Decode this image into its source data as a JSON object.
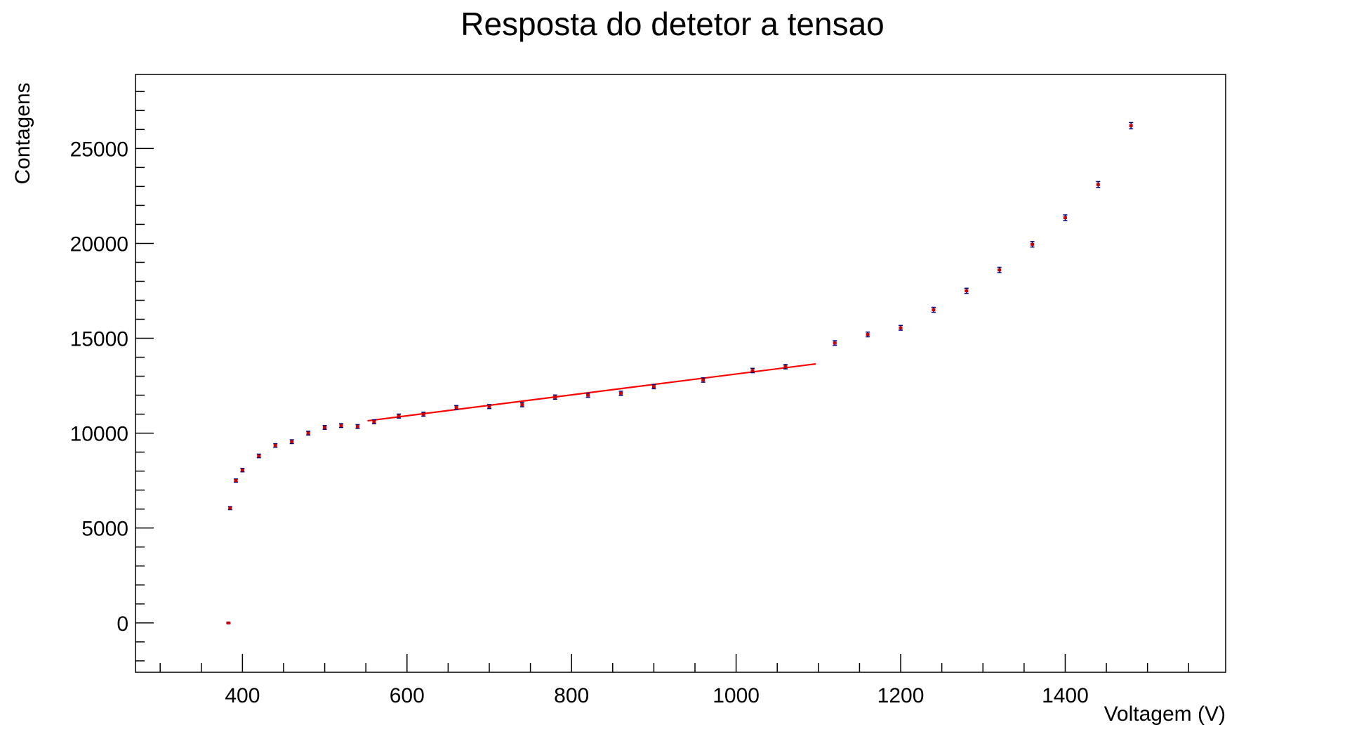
{
  "chart_data": {
    "type": "scatter",
    "title": "Resposta do detetor a tensao",
    "xlabel": "Voltagem (V)",
    "ylabel": "Contagens",
    "xlim": [
      270,
      1595
    ],
    "ylim": [
      -2600,
      28900
    ],
    "x_ticks": [
      400,
      600,
      800,
      1000,
      1200,
      1400
    ],
    "y_ticks": [
      0,
      5000,
      10000,
      15000,
      20000,
      25000
    ],
    "grid": false,
    "colors": {
      "marker": "#cc0000",
      "error_bar": "#000080",
      "fit_line": "#ff0000",
      "axis": "#000000"
    },
    "points": [
      {
        "x": 383,
        "y": 0,
        "err": 30
      },
      {
        "x": 385,
        "y": 6050,
        "err": 80
      },
      {
        "x": 392,
        "y": 7500,
        "err": 85
      },
      {
        "x": 400,
        "y": 8050,
        "err": 90
      },
      {
        "x": 420,
        "y": 8800,
        "err": 95
      },
      {
        "x": 440,
        "y": 9350,
        "err": 95
      },
      {
        "x": 460,
        "y": 9550,
        "err": 100
      },
      {
        "x": 480,
        "y": 10000,
        "err": 100
      },
      {
        "x": 500,
        "y": 10300,
        "err": 100
      },
      {
        "x": 520,
        "y": 10400,
        "err": 100
      },
      {
        "x": 540,
        "y": 10350,
        "err": 100
      },
      {
        "x": 560,
        "y": 10600,
        "err": 105
      },
      {
        "x": 590,
        "y": 10900,
        "err": 105
      },
      {
        "x": 620,
        "y": 11000,
        "err": 105
      },
      {
        "x": 660,
        "y": 11350,
        "err": 105
      },
      {
        "x": 700,
        "y": 11400,
        "err": 105
      },
      {
        "x": 740,
        "y": 11500,
        "err": 110
      },
      {
        "x": 780,
        "y": 11900,
        "err": 110
      },
      {
        "x": 820,
        "y": 12000,
        "err": 110
      },
      {
        "x": 860,
        "y": 12100,
        "err": 110
      },
      {
        "x": 900,
        "y": 12450,
        "err": 110
      },
      {
        "x": 960,
        "y": 12800,
        "err": 115
      },
      {
        "x": 1020,
        "y": 13300,
        "err": 115
      },
      {
        "x": 1060,
        "y": 13500,
        "err": 115
      },
      {
        "x": 1120,
        "y": 14750,
        "err": 120
      },
      {
        "x": 1160,
        "y": 15200,
        "err": 125
      },
      {
        "x": 1200,
        "y": 15550,
        "err": 125
      },
      {
        "x": 1240,
        "y": 16500,
        "err": 130
      },
      {
        "x": 1280,
        "y": 17500,
        "err": 135
      },
      {
        "x": 1320,
        "y": 18600,
        "err": 140
      },
      {
        "x": 1360,
        "y": 19950,
        "err": 145
      },
      {
        "x": 1400,
        "y": 21350,
        "err": 150
      },
      {
        "x": 1440,
        "y": 23100,
        "err": 155
      },
      {
        "x": 1480,
        "y": 26200,
        "err": 165
      }
    ],
    "fit_line": {
      "x": [
        552,
        1097
      ],
      "y": [
        10650,
        13650
      ]
    }
  }
}
